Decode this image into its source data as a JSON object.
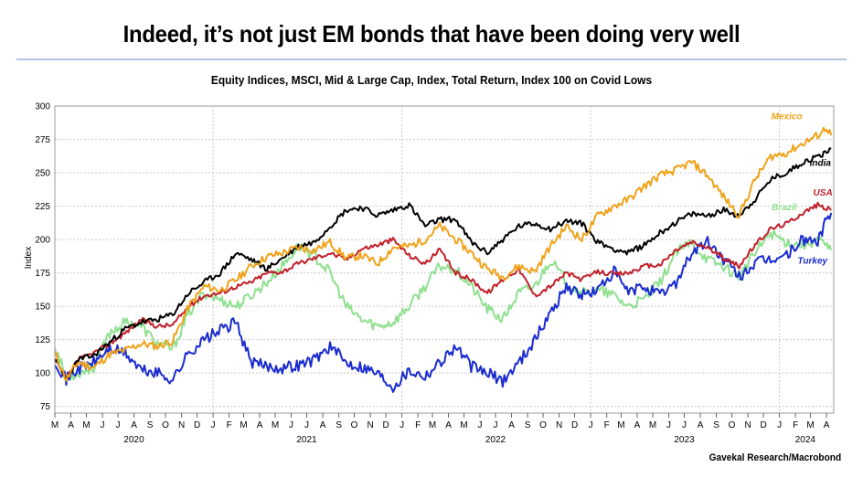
{
  "headline": "Indeed, it’s not just EM bonds that have been doing very well",
  "source": "Gavekal Research/Macrobond",
  "colors": {
    "Mexico": "#f0a21a",
    "India": "#000000",
    "USA": "#c0202a",
    "Brazil": "#8fe08f",
    "Turkey": "#1a2bd0",
    "grid": "#c8c8c8"
  },
  "chart_data": {
    "type": "line",
    "title": "Equity Indices, MSCI, Mid & Large Cap, Index, Total Return, Index 100 on Covid Lows",
    "xlabel": "",
    "ylabel": "Index",
    "ylim": [
      70,
      300
    ],
    "yticks": [
      75,
      100,
      125,
      150,
      175,
      200,
      225,
      250,
      275,
      300
    ],
    "xlim": [
      "2020-03-01",
      "2024-04-15"
    ],
    "month_ticks": [
      "M",
      "A",
      "M",
      "J",
      "J",
      "A",
      "S",
      "O",
      "N",
      "D",
      "J",
      "F",
      "M",
      "A",
      "M",
      "J",
      "J",
      "A",
      "S",
      "O",
      "N",
      "D",
      "J",
      "F",
      "M",
      "A",
      "M",
      "J",
      "J",
      "A",
      "S",
      "O",
      "N",
      "D",
      "J",
      "F",
      "M",
      "A",
      "M",
      "J",
      "J",
      "A",
      "S",
      "O",
      "N",
      "D",
      "J",
      "F",
      "M",
      "A"
    ],
    "year_labels": [
      "2020",
      "2021",
      "2022",
      "2023",
      "2024"
    ],
    "grid": true,
    "legend": "inline labels at right end",
    "series": [
      {
        "name": "Mexico",
        "points": [
          [
            "2020-03-01",
            115
          ],
          [
            "2020-03-23",
            95
          ],
          [
            "2020-04-15",
            108
          ],
          [
            "2020-05-15",
            104
          ],
          [
            "2020-06-15",
            114
          ],
          [
            "2020-07-15",
            117
          ],
          [
            "2020-08-15",
            122
          ],
          [
            "2020-09-15",
            120
          ],
          [
            "2020-10-15",
            124
          ],
          [
            "2020-11-15",
            150
          ],
          [
            "2020-12-15",
            165
          ],
          [
            "2021-01-15",
            162
          ],
          [
            "2021-02-15",
            170
          ],
          [
            "2021-03-15",
            180
          ],
          [
            "2021-04-15",
            187
          ],
          [
            "2021-05-15",
            190
          ],
          [
            "2021-06-15",
            194
          ],
          [
            "2021-07-15",
            192
          ],
          [
            "2021-08-15",
            198
          ],
          [
            "2021-09-15",
            186
          ],
          [
            "2021-10-15",
            188
          ],
          [
            "2021-11-15",
            182
          ],
          [
            "2021-12-15",
            194
          ],
          [
            "2022-01-15",
            195
          ],
          [
            "2022-02-15",
            200
          ],
          [
            "2022-03-15",
            210
          ],
          [
            "2022-04-15",
            200
          ],
          [
            "2022-05-15",
            190
          ],
          [
            "2022-06-15",
            178
          ],
          [
            "2022-07-15",
            172
          ],
          [
            "2022-08-15",
            180
          ],
          [
            "2022-09-15",
            176
          ],
          [
            "2022-10-15",
            195
          ],
          [
            "2022-11-15",
            210
          ],
          [
            "2022-12-15",
            200
          ],
          [
            "2023-01-15",
            218
          ],
          [
            "2023-02-15",
            225
          ],
          [
            "2023-03-15",
            230
          ],
          [
            "2023-04-15",
            240
          ],
          [
            "2023-05-15",
            248
          ],
          [
            "2023-06-15",
            252
          ],
          [
            "2023-07-15",
            258
          ],
          [
            "2023-08-15",
            248
          ],
          [
            "2023-09-15",
            232
          ],
          [
            "2023-10-15",
            218
          ],
          [
            "2023-11-15",
            245
          ],
          [
            "2023-12-15",
            262
          ],
          [
            "2024-01-15",
            265
          ],
          [
            "2024-02-15",
            272
          ],
          [
            "2024-03-15",
            278
          ],
          [
            "2024-04-01",
            284
          ],
          [
            "2024-04-10",
            278
          ]
        ]
      },
      {
        "name": "India",
        "points": [
          [
            "2020-03-01",
            110
          ],
          [
            "2020-03-23",
            95
          ],
          [
            "2020-04-15",
            110
          ],
          [
            "2020-05-15",
            113
          ],
          [
            "2020-06-15",
            123
          ],
          [
            "2020-07-15",
            133
          ],
          [
            "2020-08-15",
            138
          ],
          [
            "2020-09-15",
            140
          ],
          [
            "2020-10-15",
            144
          ],
          [
            "2020-11-15",
            160
          ],
          [
            "2020-12-15",
            168
          ],
          [
            "2021-01-15",
            175
          ],
          [
            "2021-02-15",
            190
          ],
          [
            "2021-03-15",
            185
          ],
          [
            "2021-04-15",
            178
          ],
          [
            "2021-05-15",
            186
          ],
          [
            "2021-06-15",
            195
          ],
          [
            "2021-07-15",
            198
          ],
          [
            "2021-08-15",
            210
          ],
          [
            "2021-09-15",
            222
          ],
          [
            "2021-10-15",
            224
          ],
          [
            "2021-11-15",
            218
          ],
          [
            "2021-12-15",
            222
          ],
          [
            "2022-01-15",
            226
          ],
          [
            "2022-02-15",
            210
          ],
          [
            "2022-03-15",
            215
          ],
          [
            "2022-04-15",
            215
          ],
          [
            "2022-05-15",
            198
          ],
          [
            "2022-06-15",
            190
          ],
          [
            "2022-07-15",
            200
          ],
          [
            "2022-08-15",
            210
          ],
          [
            "2022-09-15",
            212
          ],
          [
            "2022-10-15",
            208
          ],
          [
            "2022-11-15",
            214
          ],
          [
            "2022-12-15",
            212
          ],
          [
            "2023-01-15",
            198
          ],
          [
            "2023-02-15",
            193
          ],
          [
            "2023-03-15",
            190
          ],
          [
            "2023-04-15",
            196
          ],
          [
            "2023-05-15",
            205
          ],
          [
            "2023-06-15",
            213
          ],
          [
            "2023-07-15",
            219
          ],
          [
            "2023-08-15",
            218
          ],
          [
            "2023-09-15",
            222
          ],
          [
            "2023-10-15",
            218
          ],
          [
            "2023-11-15",
            230
          ],
          [
            "2023-12-15",
            245
          ],
          [
            "2024-01-15",
            250
          ],
          [
            "2024-02-15",
            258
          ],
          [
            "2024-03-15",
            262
          ],
          [
            "2024-04-10",
            268
          ]
        ]
      },
      {
        "name": "USA",
        "points": [
          [
            "2020-03-01",
            110
          ],
          [
            "2020-03-23",
            95
          ],
          [
            "2020-04-15",
            110
          ],
          [
            "2020-05-15",
            115
          ],
          [
            "2020-06-15",
            122
          ],
          [
            "2020-07-15",
            130
          ],
          [
            "2020-08-15",
            140
          ],
          [
            "2020-09-15",
            135
          ],
          [
            "2020-10-15",
            136
          ],
          [
            "2020-11-15",
            150
          ],
          [
            "2020-12-15",
            158
          ],
          [
            "2021-01-15",
            160
          ],
          [
            "2021-02-15",
            165
          ],
          [
            "2021-03-15",
            168
          ],
          [
            "2021-04-15",
            175
          ],
          [
            "2021-05-15",
            176
          ],
          [
            "2021-06-15",
            182
          ],
          [
            "2021-07-15",
            186
          ],
          [
            "2021-08-15",
            190
          ],
          [
            "2021-09-15",
            185
          ],
          [
            "2021-10-15",
            193
          ],
          [
            "2021-11-15",
            196
          ],
          [
            "2021-12-15",
            200
          ],
          [
            "2022-01-15",
            188
          ],
          [
            "2022-02-15",
            182
          ],
          [
            "2022-03-15",
            192
          ],
          [
            "2022-04-15",
            175
          ],
          [
            "2022-05-15",
            170
          ],
          [
            "2022-06-15",
            160
          ],
          [
            "2022-07-15",
            170
          ],
          [
            "2022-08-15",
            178
          ],
          [
            "2022-09-15",
            158
          ],
          [
            "2022-10-15",
            165
          ],
          [
            "2022-11-15",
            175
          ],
          [
            "2022-12-15",
            170
          ],
          [
            "2023-01-15",
            176
          ],
          [
            "2023-02-15",
            174
          ],
          [
            "2023-03-15",
            175
          ],
          [
            "2023-04-15",
            180
          ],
          [
            "2023-05-15",
            181
          ],
          [
            "2023-06-15",
            192
          ],
          [
            "2023-07-15",
            198
          ],
          [
            "2023-08-15",
            194
          ],
          [
            "2023-09-15",
            186
          ],
          [
            "2023-10-15",
            180
          ],
          [
            "2023-11-15",
            196
          ],
          [
            "2023-12-15",
            208
          ],
          [
            "2024-01-15",
            212
          ],
          [
            "2024-02-15",
            220
          ],
          [
            "2024-03-15",
            226
          ],
          [
            "2024-04-10",
            222
          ]
        ]
      },
      {
        "name": "Brazil",
        "points": [
          [
            "2020-03-01",
            120
          ],
          [
            "2020-03-23",
            97
          ],
          [
            "2020-04-15",
            100
          ],
          [
            "2020-05-15",
            104
          ],
          [
            "2020-06-15",
            130
          ],
          [
            "2020-07-15",
            138
          ],
          [
            "2020-08-15",
            135
          ],
          [
            "2020-09-15",
            122
          ],
          [
            "2020-10-15",
            118
          ],
          [
            "2020-11-15",
            145
          ],
          [
            "2020-12-15",
            160
          ],
          [
            "2021-01-15",
            155
          ],
          [
            "2021-02-15",
            150
          ],
          [
            "2021-03-15",
            158
          ],
          [
            "2021-04-15",
            168
          ],
          [
            "2021-05-15",
            180
          ],
          [
            "2021-06-15",
            195
          ],
          [
            "2021-07-15",
            188
          ],
          [
            "2021-08-15",
            175
          ],
          [
            "2021-09-15",
            150
          ],
          [
            "2021-10-15",
            140
          ],
          [
            "2021-11-15",
            135
          ],
          [
            "2021-12-15",
            138
          ],
          [
            "2022-01-15",
            150
          ],
          [
            "2022-02-15",
            165
          ],
          [
            "2022-03-15",
            180
          ],
          [
            "2022-04-15",
            178
          ],
          [
            "2022-05-15",
            165
          ],
          [
            "2022-06-15",
            148
          ],
          [
            "2022-07-15",
            140
          ],
          [
            "2022-08-15",
            160
          ],
          [
            "2022-09-15",
            165
          ],
          [
            "2022-10-15",
            185
          ],
          [
            "2022-11-15",
            168
          ],
          [
            "2022-12-15",
            160
          ],
          [
            "2023-01-15",
            162
          ],
          [
            "2023-02-15",
            158
          ],
          [
            "2023-03-15",
            150
          ],
          [
            "2023-04-15",
            155
          ],
          [
            "2023-05-15",
            168
          ],
          [
            "2023-06-15",
            190
          ],
          [
            "2023-07-15",
            198
          ],
          [
            "2023-08-15",
            185
          ],
          [
            "2023-09-15",
            180
          ],
          [
            "2023-10-15",
            172
          ],
          [
            "2023-11-15",
            190
          ],
          [
            "2023-12-15",
            205
          ],
          [
            "2024-01-15",
            198
          ],
          [
            "2024-02-15",
            196
          ],
          [
            "2024-03-15",
            200
          ],
          [
            "2024-04-10",
            192
          ]
        ]
      },
      {
        "name": "Turkey",
        "points": [
          [
            "2020-03-01",
            110
          ],
          [
            "2020-03-23",
            95
          ],
          [
            "2020-04-15",
            103
          ],
          [
            "2020-05-15",
            108
          ],
          [
            "2020-06-15",
            118
          ],
          [
            "2020-07-15",
            115
          ],
          [
            "2020-08-15",
            102
          ],
          [
            "2020-09-15",
            100
          ],
          [
            "2020-10-15",
            95
          ],
          [
            "2020-11-15",
            115
          ],
          [
            "2020-12-15",
            125
          ],
          [
            "2021-01-15",
            132
          ],
          [
            "2021-02-15",
            138
          ],
          [
            "2021-03-15",
            108
          ],
          [
            "2021-04-15",
            105
          ],
          [
            "2021-05-15",
            104
          ],
          [
            "2021-06-15",
            106
          ],
          [
            "2021-07-15",
            110
          ],
          [
            "2021-08-15",
            120
          ],
          [
            "2021-09-15",
            108
          ],
          [
            "2021-10-15",
            105
          ],
          [
            "2021-11-15",
            100
          ],
          [
            "2021-12-15",
            90
          ],
          [
            "2022-01-15",
            102
          ],
          [
            "2022-02-15",
            98
          ],
          [
            "2022-03-15",
            108
          ],
          [
            "2022-04-15",
            120
          ],
          [
            "2022-05-15",
            105
          ],
          [
            "2022-06-15",
            100
          ],
          [
            "2022-07-15",
            94
          ],
          [
            "2022-08-15",
            108
          ],
          [
            "2022-09-15",
            125
          ],
          [
            "2022-10-15",
            145
          ],
          [
            "2022-11-15",
            165
          ],
          [
            "2022-12-15",
            158
          ],
          [
            "2023-01-15",
            162
          ],
          [
            "2023-02-15",
            176
          ],
          [
            "2023-03-15",
            160
          ],
          [
            "2023-04-15",
            165
          ],
          [
            "2023-05-15",
            158
          ],
          [
            "2023-06-15",
            168
          ],
          [
            "2023-07-15",
            190
          ],
          [
            "2023-08-15",
            198
          ],
          [
            "2023-09-15",
            185
          ],
          [
            "2023-10-15",
            172
          ],
          [
            "2023-11-15",
            182
          ],
          [
            "2023-12-15",
            185
          ],
          [
            "2024-01-15",
            188
          ],
          [
            "2024-02-15",
            200
          ],
          [
            "2024-03-15",
            198
          ],
          [
            "2024-04-01",
            216
          ],
          [
            "2024-04-10",
            220
          ]
        ]
      }
    ]
  }
}
